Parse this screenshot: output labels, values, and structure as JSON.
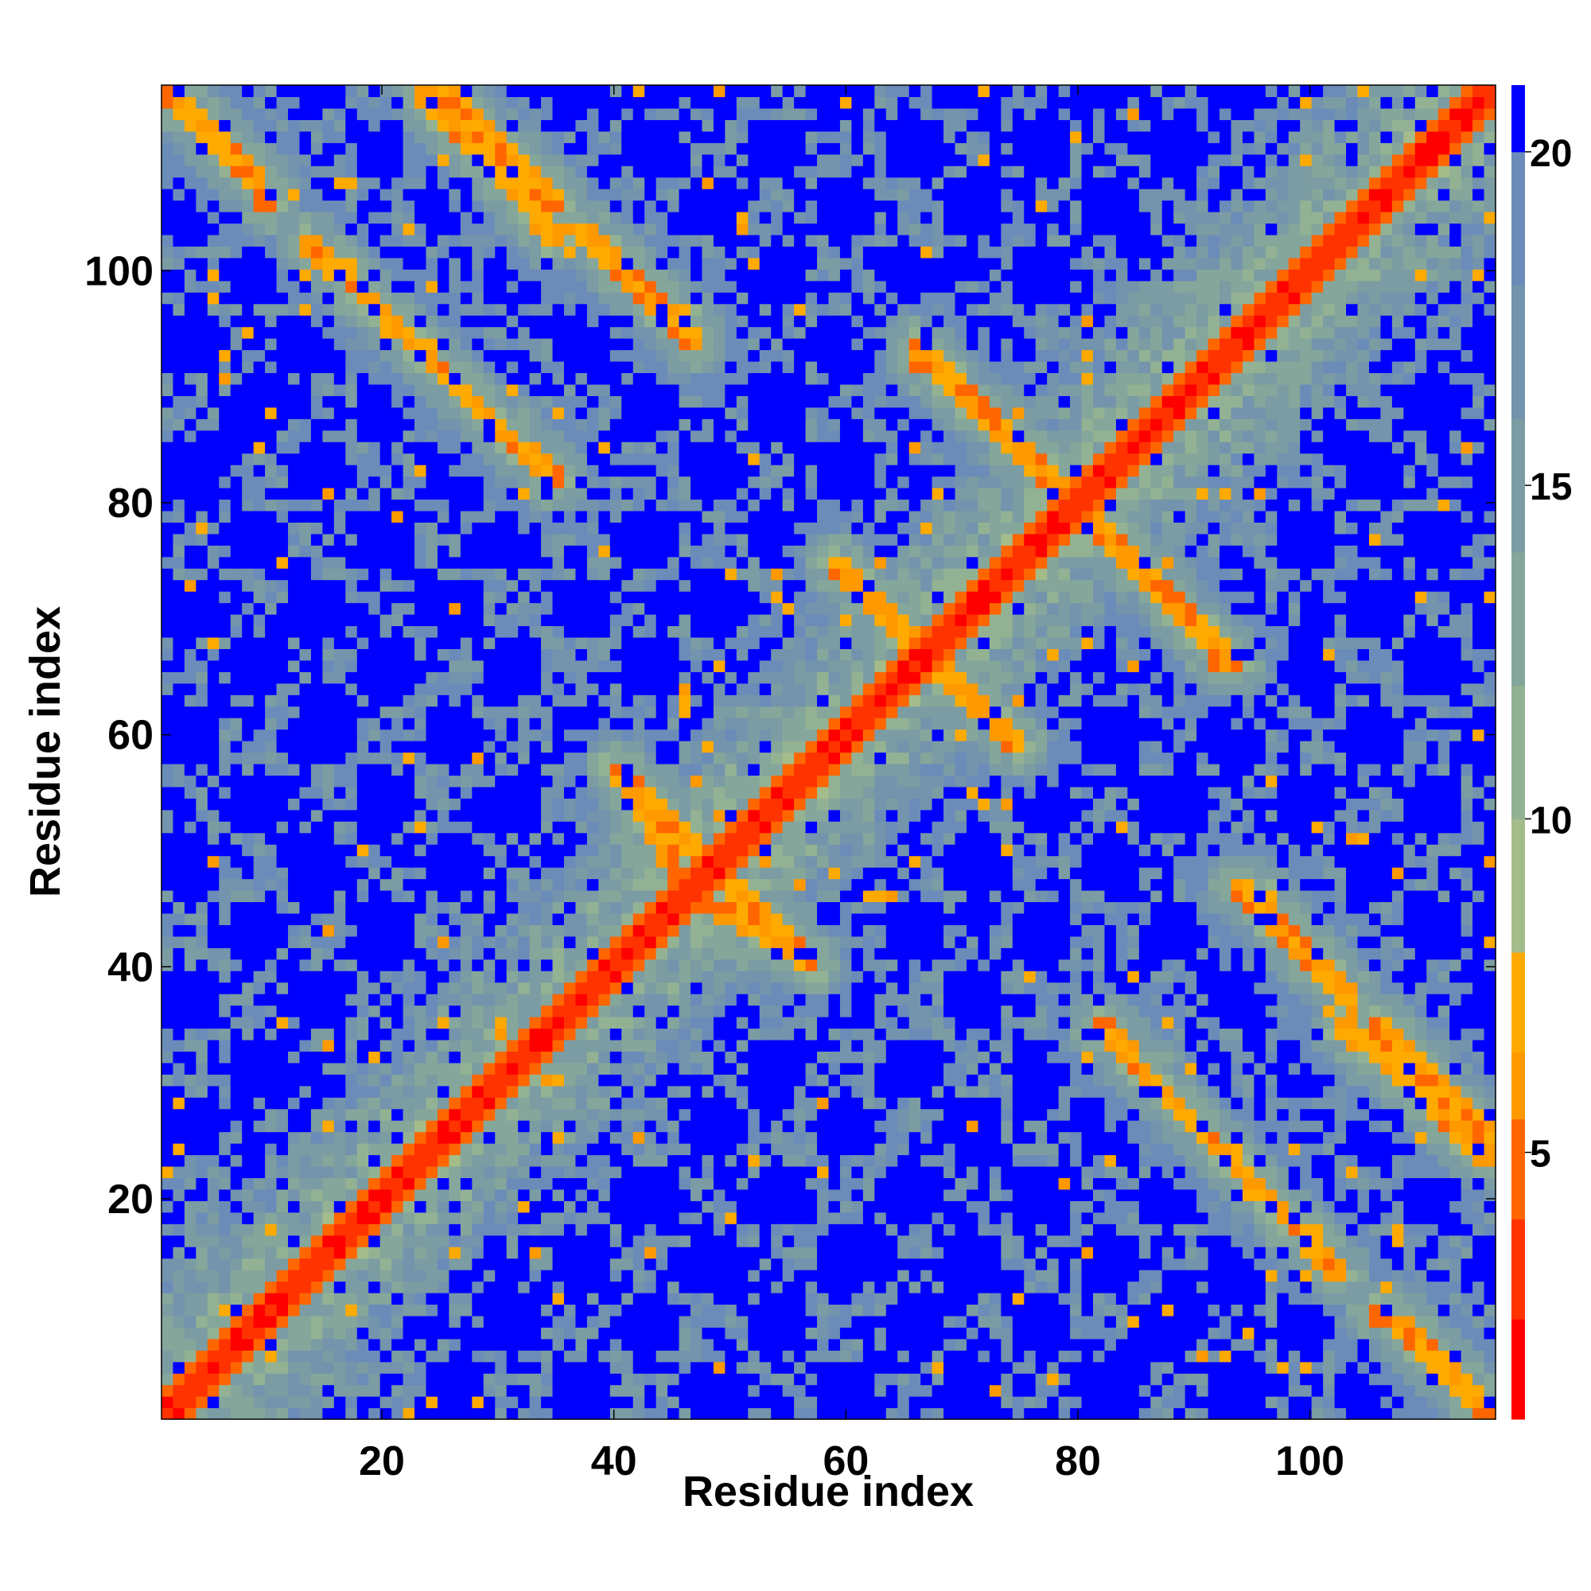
{
  "chart_data": {
    "type": "heatmap",
    "title": "",
    "xlabel": "Residue index",
    "ylabel": "Residue index",
    "n_residues": 116,
    "xlim": [
      1,
      116
    ],
    "ylim": [
      1,
      116
    ],
    "x_ticks": [
      20,
      40,
      60,
      80,
      100
    ],
    "x_tick_labels": [
      "20",
      "40",
      "60",
      "80",
      "100"
    ],
    "y_ticks": [
      20,
      40,
      60,
      80,
      100
    ],
    "y_tick_labels": [
      "20",
      "40",
      "60",
      "80",
      "100"
    ],
    "colorbar": {
      "range": [
        1,
        21
      ],
      "ticks": [
        5,
        10,
        15,
        20
      ],
      "tick_labels": [
        "5",
        "10",
        "15",
        "20"
      ],
      "position": "right"
    },
    "color_scale": [
      {
        "max": 2.5,
        "color": "#ff0000"
      },
      {
        "max": 4.0,
        "color": "#ff3300"
      },
      {
        "max": 5.5,
        "color": "#ff6600"
      },
      {
        "max": 6.5,
        "color": "#ff9900"
      },
      {
        "max": 8.0,
        "color": "#ffaa00"
      },
      {
        "max": 10.0,
        "color": "#a4bc8a"
      },
      {
        "max": 12.0,
        "color": "#93b294"
      },
      {
        "max": 14.0,
        "color": "#85a69b"
      },
      {
        "max": 16.0,
        "color": "#7b9ca3"
      },
      {
        "max": 18.0,
        "color": "#7394ac"
      },
      {
        "max": 20.0,
        "color": "#6b8cb8"
      },
      {
        "max": 99.0,
        "color": "#0000ff"
      }
    ],
    "matrix_description": "symmetric residue-residue distance map (Angstrom); red diagonal band, orange antiparallel strand-pairing diagonals, blue regions >20",
    "contact_features": [
      {
        "from": [
          1,
          116
        ],
        "to": [
          9,
          108
        ],
        "kind": "antiparallel"
      },
      {
        "from": [
          13,
          103
        ],
        "to": [
          35,
          82
        ],
        "kind": "antiparallel"
      },
      {
        "from": [
          25,
          116
        ],
        "to": [
          35,
          106
        ],
        "kind": "antiparallel"
      },
      {
        "from": [
          37,
          104
        ],
        "to": [
          46,
          96
        ],
        "kind": "antiparallel"
      },
      {
        "from": [
          66,
          94
        ],
        "to": [
          80,
          80
        ],
        "kind": "antiparallel"
      },
      {
        "from": [
          81,
          80
        ],
        "to": [
          93,
          66
        ],
        "kind": "antiparallel"
      },
      {
        "from": [
          59,
          75
        ],
        "to": [
          66,
          68
        ],
        "kind": "antiparallel"
      },
      {
        "from": [
          68,
          66
        ],
        "to": [
          75,
          59
        ],
        "kind": "antiparallel"
      },
      {
        "from": [
          40,
          57
        ],
        "to": [
          47,
          50
        ],
        "kind": "antiparallel"
      },
      {
        "from": [
          47,
          46
        ],
        "to": [
          57,
          40
        ],
        "kind": "antiparallel"
      },
      {
        "from": [
          94,
          47
        ],
        "to": [
          104,
          37
        ],
        "kind": "antiparallel"
      },
      {
        "from": [
          103,
          35
        ],
        "to": [
          116,
          23
        ],
        "kind": "antiparallel"
      },
      {
        "from": [
          82,
          35
        ],
        "to": [
          103,
          13
        ],
        "kind": "antiparallel"
      },
      {
        "from": [
          106,
          10
        ],
        "to": [
          116,
          1
        ],
        "kind": "antiparallel"
      }
    ]
  }
}
